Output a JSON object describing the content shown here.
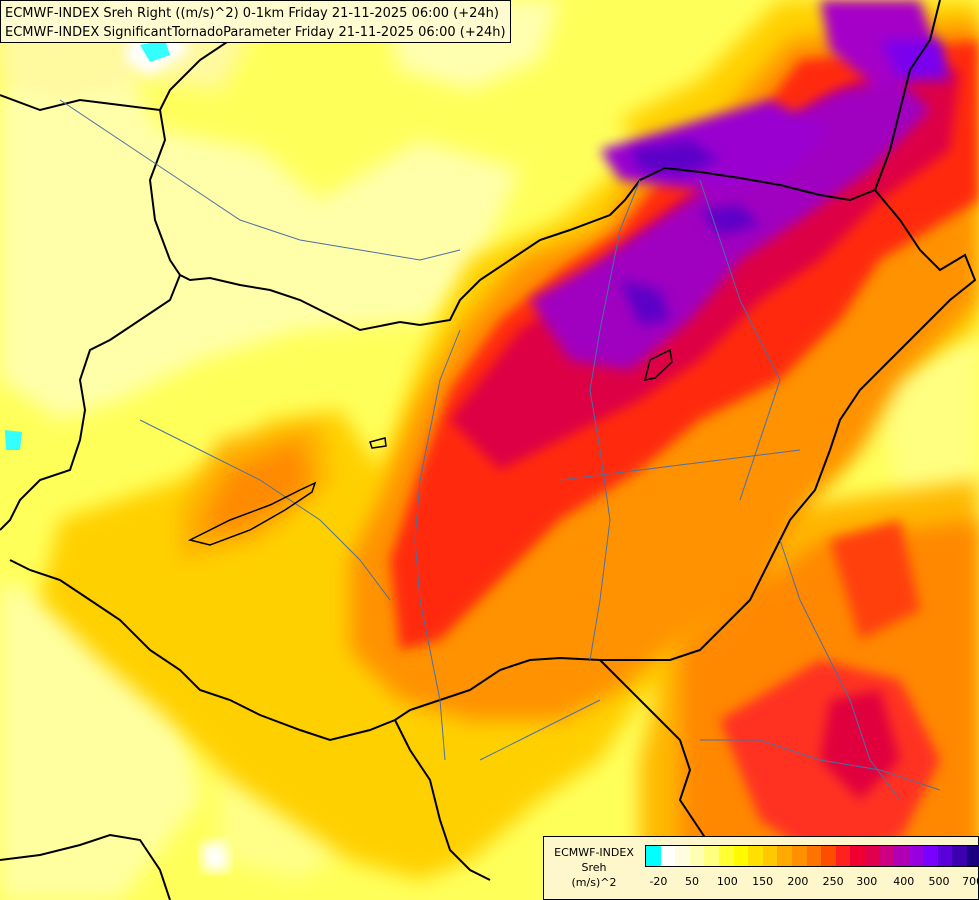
{
  "header": {
    "line1": "ECMWF-INDEX Sreh Right ((m/s)^2) 0-1km Friday 21-11-2025 06:00 (+24h)",
    "line2": "ECMWF-INDEX SignificantTornadoParameter Friday 21-11-2025 06:00 (+24h)"
  },
  "legend": {
    "title_line1": "ECMWF-INDEX",
    "title_line2": "Sreh",
    "title_line3": "(m/s)^2",
    "colors": [
      "#00ffff",
      "#ffffff",
      "#fffde0",
      "#ffffb3",
      "#ffff80",
      "#ffff33",
      "#fffa00",
      "#ffe100",
      "#ffc800",
      "#ffaa00",
      "#ff9100",
      "#ff7300",
      "#ff4d00",
      "#ff2020",
      "#f00030",
      "#e0004d",
      "#cc0080",
      "#b000b3",
      "#9900e0",
      "#7a00ff",
      "#5a00d8",
      "#3d00b0",
      "#1a0080"
    ],
    "tick_labels": [
      "-20",
      "50",
      "100",
      "150",
      "200",
      "250",
      "300",
      "400",
      "500",
      "700"
    ]
  },
  "colors": {
    "background_low": "#ffff66",
    "band_orange": "#ffa500",
    "band_red": "#ff2a00",
    "core_magenta": "#cc0077",
    "core_purple": "#7a00ff"
  }
}
